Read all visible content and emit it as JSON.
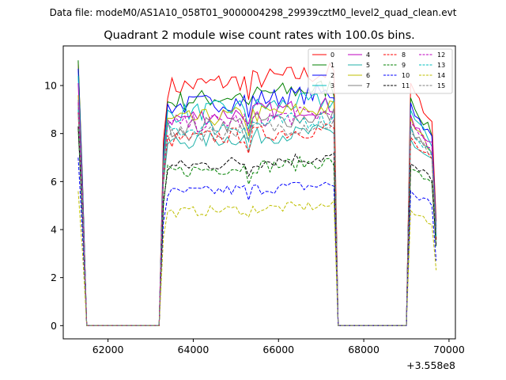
{
  "chart_data": {
    "type": "line",
    "suptitle": "Data file: modeM0/AS1A10_058T01_9000004298_29939cztM0_level2_quad_clean.evt",
    "title": "Quadrant 2 module wise count rates with 100.0s bins.",
    "xlabel": "",
    "ylabel": "",
    "x_offset_label": "+3.558e8",
    "xlim": [
      60950,
      70150
    ],
    "ylim": [
      -0.55,
      11.65
    ],
    "x_ticks": [
      62000,
      64000,
      66000,
      68000,
      70000
    ],
    "y_ticks": [
      0,
      2,
      4,
      6,
      8,
      10
    ],
    "legend_position": "upper right",
    "grid": false,
    "segments": [
      {
        "x_start": 61300,
        "count": 3
      },
      {
        "x_start": 63200,
        "count": 42
      },
      {
        "x_start": 69000,
        "count": 7
      }
    ],
    "series": [
      {
        "name": "0",
        "color": "#ff0000",
        "style": "solid",
        "levels": [
          11.0,
          0.0,
          9.9,
          7.9
        ]
      },
      {
        "name": "1",
        "color": "#008000",
        "style": "solid",
        "levels": [
          11.05,
          0.0,
          9.3,
          7.5
        ]
      },
      {
        "name": "2",
        "color": "#0000ff",
        "style": "solid",
        "levels": [
          10.7,
          0.0,
          9.1,
          7.3
        ]
      },
      {
        "name": "3",
        "color": "#00bfbf",
        "style": "solid",
        "levels": [
          10.4,
          0.0,
          8.8,
          7.1
        ]
      },
      {
        "name": "4",
        "color": "#bf00bf",
        "style": "solid",
        "levels": [
          10.1,
          0.0,
          8.6,
          7.0
        ]
      },
      {
        "name": "5",
        "color": "#20b2aa",
        "style": "solid",
        "levels": [
          9.2,
          0.0,
          7.6,
          6.6
        ]
      },
      {
        "name": "6",
        "color": "#bfbf00",
        "style": "solid",
        "levels": [
          9.6,
          0.0,
          8.5,
          6.8
        ]
      },
      {
        "name": "7",
        "color": "#808080",
        "style": "solid",
        "levels": [
          9.4,
          0.0,
          8.2,
          6.7
        ]
      },
      {
        "name": "8",
        "color": "#ff0000",
        "style": "dashed",
        "levels": [
          8.9,
          0.0,
          7.7,
          6.5
        ]
      },
      {
        "name": "9",
        "color": "#008000",
        "style": "dashed",
        "levels": [
          8.2,
          0.0,
          6.4,
          5.9
        ]
      },
      {
        "name": "10",
        "color": "#0000ff",
        "style": "dashed",
        "levels": [
          7.0,
          0.0,
          5.5,
          4.9
        ]
      },
      {
        "name": "11",
        "color": "#000000",
        "style": "dashed",
        "levels": [
          8.3,
          0.0,
          6.6,
          6.0
        ]
      },
      {
        "name": "12",
        "color": "#bf00bf",
        "style": "dashed",
        "levels": [
          9.3,
          0.0,
          8.3,
          6.9
        ]
      },
      {
        "name": "13",
        "color": "#00bfbf",
        "style": "dashed",
        "levels": [
          9.0,
          0.0,
          8.1,
          6.8
        ]
      },
      {
        "name": "14",
        "color": "#bfbf00",
        "style": "dashed",
        "levels": [
          5.6,
          0.0,
          4.7,
          4.2
        ]
      },
      {
        "name": "15",
        "color": "#808080",
        "style": "dashed",
        "levels": [
          8.8,
          0.0,
          7.9,
          6.9
        ]
      }
    ]
  }
}
